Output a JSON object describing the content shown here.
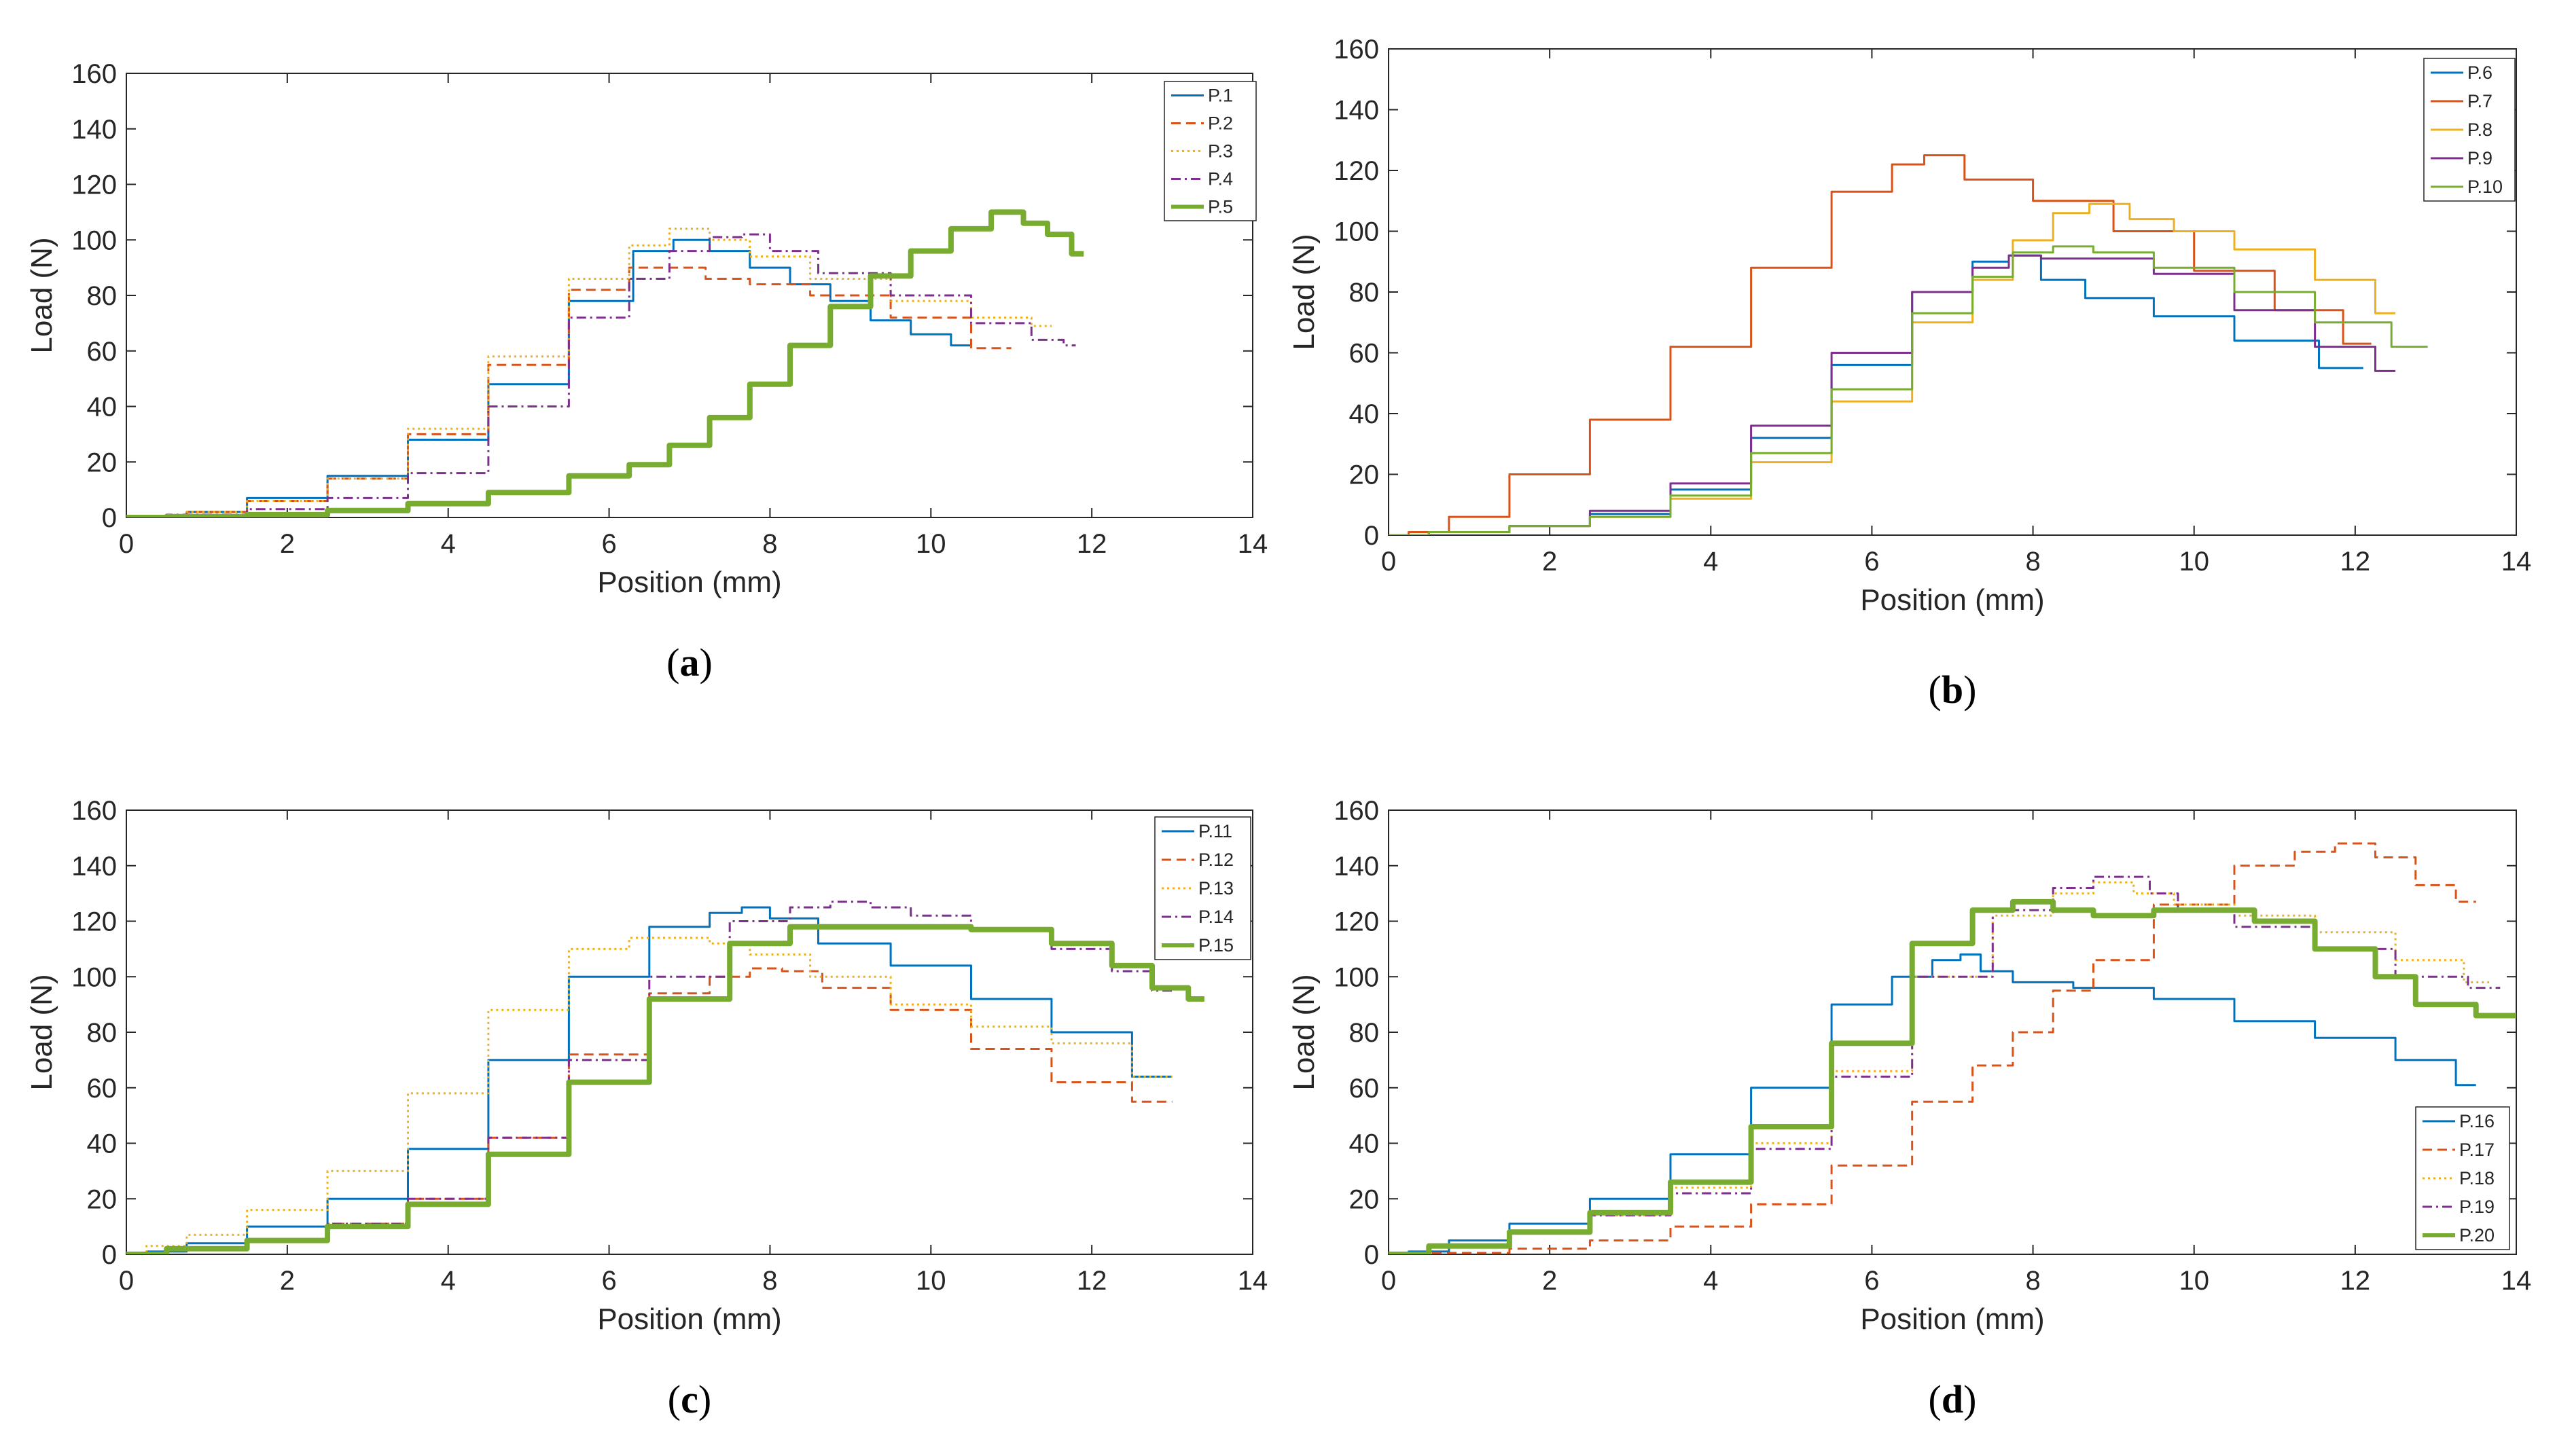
{
  "colors": {
    "blue": "#0072BD",
    "orange": "#D95319",
    "yellow": "#EDB120",
    "purple": "#7E2F8E",
    "green": "#77AC30"
  },
  "chart_data": [
    {
      "type": "line",
      "caption_letter": "a",
      "xlabel": "Position (mm)",
      "ylabel": "Load (N)",
      "xlim": [
        0,
        14
      ],
      "ylim": [
        0,
        160
      ],
      "xticks": [
        0,
        2,
        4,
        6,
        8,
        10,
        12,
        14
      ],
      "yticks": [
        0,
        20,
        40,
        60,
        80,
        100,
        120,
        140,
        160
      ],
      "legend_position": "top-right",
      "series": [
        {
          "name": "P.1",
          "style": "solid",
          "width": 3,
          "color": "#0072BD",
          "x": [
            0,
            0.5,
            1,
            2,
            3,
            4,
            5,
            6,
            6.6,
            7.0,
            7.5,
            8,
            8.5,
            9,
            9.5,
            10,
            10.5
          ],
          "y": [
            0,
            0.5,
            2,
            7,
            15,
            28,
            48,
            78,
            96,
            100,
            96,
            90,
            84,
            78,
            71,
            66,
            62
          ]
        },
        {
          "name": "P.2",
          "style": "dashed",
          "width": 3,
          "color": "#D95319",
          "x": [
            0,
            0.5,
            1,
            2,
            3,
            4,
            5,
            6,
            6.5,
            6.9,
            7.5,
            8,
            9,
            10,
            11
          ],
          "y": [
            0,
            0.5,
            2,
            6,
            14,
            30,
            55,
            82,
            90,
            90,
            86,
            84,
            80,
            72,
            61
          ]
        },
        {
          "name": "P.3",
          "style": "dotted",
          "width": 3,
          "color": "#EDB120",
          "x": [
            0,
            0.5,
            1,
            2,
            3,
            4,
            5,
            6,
            6.5,
            7.0,
            7.5,
            8,
            9,
            10,
            11,
            11.5
          ],
          "y": [
            0,
            0.5,
            2,
            6,
            14,
            32,
            58,
            86,
            98,
            104,
            100,
            94,
            86,
            78,
            72,
            69
          ]
        },
        {
          "name": "P.4",
          "style": "dashdot",
          "width": 3,
          "color": "#7E2F8E",
          "x": [
            0,
            1,
            2,
            3,
            4,
            5,
            6,
            6.5,
            7.0,
            7.5,
            7.8,
            8.2,
            9,
            10,
            11,
            11.5,
            11.8
          ],
          "y": [
            0,
            1,
            3,
            7,
            16,
            40,
            72,
            86,
            96,
            101,
            102,
            96,
            88,
            80,
            70,
            64,
            62
          ]
        },
        {
          "name": "P.5",
          "style": "solid",
          "width": 8,
          "color": "#77AC30",
          "x": [
            0,
            1,
            2,
            3,
            4,
            5,
            6,
            6.5,
            7,
            7.5,
            8,
            8.5,
            9,
            9.5,
            10,
            10.5,
            11,
            11.3,
            11.6,
            11.9
          ],
          "y": [
            0,
            0.3,
            1,
            2.5,
            5,
            9,
            15,
            19,
            26,
            36,
            48,
            62,
            76,
            87,
            96,
            104,
            110,
            106,
            102,
            95
          ]
        }
      ]
    },
    {
      "type": "line",
      "caption_letter": "b",
      "xlabel": "Position (mm)",
      "ylabel": "Load (N)",
      "xlim": [
        0,
        14
      ],
      "ylim": [
        0,
        160
      ],
      "xticks": [
        0,
        2,
        4,
        6,
        8,
        10,
        12,
        14
      ],
      "yticks": [
        0,
        20,
        40,
        60,
        80,
        100,
        120,
        140,
        160
      ],
      "legend_position": "top-right",
      "series": [
        {
          "name": "P.6",
          "style": "solid",
          "width": 3,
          "color": "#0072BD",
          "x": [
            0,
            1,
            2,
            3,
            4,
            5,
            6,
            7,
            7.5,
            7.9,
            8.3,
            9,
            10,
            11,
            12.1
          ],
          "y": [
            0,
            1,
            3,
            7,
            15,
            32,
            56,
            80,
            90,
            92,
            84,
            78,
            72,
            64,
            55
          ]
        },
        {
          "name": "P.7",
          "style": "solid",
          "width": 3,
          "color": "#D95319",
          "x": [
            0,
            0.5,
            1,
            2,
            3,
            4,
            5,
            6,
            6.5,
            6.8,
            7.5,
            8.5,
            9.5,
            10.5,
            11.5,
            12.2
          ],
          "y": [
            0,
            1,
            6,
            20,
            38,
            62,
            88,
            113,
            122,
            125,
            117,
            110,
            100,
            87,
            74,
            63
          ]
        },
        {
          "name": "P.8",
          "style": "solid",
          "width": 3,
          "color": "#EDB120",
          "x": [
            0,
            1,
            2,
            3,
            4,
            5,
            6,
            7,
            7.5,
            8,
            8.5,
            8.9,
            9.5,
            10,
            11,
            12,
            12.5
          ],
          "y": [
            0,
            1,
            3,
            6,
            12,
            24,
            44,
            70,
            84,
            97,
            106,
            109,
            104,
            100,
            94,
            84,
            73
          ]
        },
        {
          "name": "P.9",
          "style": "solid",
          "width": 3,
          "color": "#7E2F8E",
          "x": [
            0,
            1,
            2,
            3,
            4,
            5,
            6,
            7,
            7.5,
            7.9,
            8.3,
            9,
            10,
            11,
            12,
            12.5
          ],
          "y": [
            0,
            1,
            3,
            8,
            17,
            36,
            60,
            80,
            88,
            92,
            91,
            91,
            86,
            74,
            62,
            54
          ]
        },
        {
          "name": "P.10",
          "style": "solid",
          "width": 3,
          "color": "#77AC30",
          "x": [
            0,
            1,
            2,
            3,
            4,
            5,
            6,
            7,
            7.5,
            8,
            8.5,
            9,
            10,
            11,
            12,
            12.9
          ],
          "y": [
            0,
            1,
            3,
            6,
            13,
            27,
            48,
            73,
            85,
            93,
            95,
            93,
            88,
            80,
            70,
            62
          ]
        }
      ]
    },
    {
      "type": "line",
      "caption_letter": "c",
      "xlabel": "Position (mm)",
      "ylabel": "Load (N)",
      "xlim": [
        0,
        14
      ],
      "ylim": [
        0,
        160
      ],
      "xticks": [
        0,
        2,
        4,
        6,
        8,
        10,
        12,
        14
      ],
      "yticks": [
        0,
        20,
        40,
        60,
        80,
        100,
        120,
        140,
        160
      ],
      "legend_position": "top-right",
      "series": [
        {
          "name": "P.11",
          "style": "solid",
          "width": 3,
          "color": "#0072BD",
          "x": [
            0,
            0.5,
            1,
            2,
            3,
            4,
            5,
            6,
            7,
            7.5,
            7.8,
            8.2,
            9,
            10,
            11,
            12,
            13
          ],
          "y": [
            0,
            1,
            4,
            10,
            20,
            38,
            70,
            100,
            118,
            123,
            125,
            121,
            112,
            104,
            92,
            80,
            64
          ]
        },
        {
          "name": "P.12",
          "style": "dashed",
          "width": 3,
          "color": "#D95319",
          "x": [
            0,
            1,
            2,
            3,
            4,
            5,
            6,
            7,
            7.5,
            8,
            8.3,
            9,
            10,
            11,
            12,
            13
          ],
          "y": [
            0,
            2,
            5,
            11,
            20,
            42,
            72,
            94,
            100,
            103,
            102,
            96,
            88,
            74,
            62,
            55
          ]
        },
        {
          "name": "P.13",
          "style": "dotted",
          "width": 3,
          "color": "#EDB120",
          "x": [
            0,
            0.5,
            1,
            2,
            3,
            4,
            5,
            6,
            6.5,
            7,
            7.5,
            8,
            9,
            10,
            11,
            12,
            13
          ],
          "y": [
            0,
            3,
            7,
            16,
            30,
            58,
            88,
            110,
            114,
            114,
            112,
            108,
            100,
            90,
            82,
            76,
            64
          ]
        },
        {
          "name": "P.14",
          "style": "dashdot",
          "width": 3,
          "color": "#7E2F8E",
          "x": [
            0,
            1,
            2,
            3,
            4,
            5,
            6,
            7,
            8,
            8.5,
            9,
            9.5,
            10,
            11,
            12,
            12.5,
            13
          ],
          "y": [
            0,
            2,
            5,
            11,
            20,
            42,
            70,
            100,
            120,
            125,
            127,
            125,
            122,
            117,
            110,
            102,
            95
          ]
        },
        {
          "name": "P.15",
          "style": "solid",
          "width": 8,
          "color": "#77AC30",
          "x": [
            0,
            1,
            2,
            3,
            4,
            5,
            6,
            7,
            8,
            8.5,
            9,
            10,
            11,
            12,
            12.5,
            13,
            13.4
          ],
          "y": [
            0,
            2,
            5,
            10,
            18,
            36,
            62,
            92,
            112,
            118,
            118,
            118,
            117,
            112,
            104,
            96,
            92
          ]
        }
      ]
    },
    {
      "type": "line",
      "caption_letter": "d",
      "xlabel": "Position (mm)",
      "ylabel": "Load (N)",
      "xlim": [
        0,
        14
      ],
      "ylim": [
        0,
        160
      ],
      "xticks": [
        0,
        2,
        4,
        6,
        8,
        10,
        12,
        14
      ],
      "yticks": [
        0,
        20,
        40,
        60,
        80,
        100,
        120,
        140,
        160
      ],
      "legend_position": "bottom-right",
      "series": [
        {
          "name": "P.16",
          "style": "solid",
          "width": 3,
          "color": "#0072BD",
          "x": [
            0,
            0.5,
            1,
            2,
            3,
            4,
            5,
            6,
            6.5,
            7,
            7.2,
            7.5,
            8,
            9,
            10,
            11,
            12,
            13,
            13.5
          ],
          "y": [
            0,
            1,
            5,
            11,
            20,
            36,
            60,
            90,
            100,
            106,
            108,
            102,
            98,
            96,
            92,
            84,
            78,
            70,
            61
          ]
        },
        {
          "name": "P.17",
          "style": "dashed",
          "width": 3,
          "color": "#D95319",
          "x": [
            0,
            1,
            2,
            3,
            4,
            5,
            6,
            7,
            7.5,
            8,
            8.5,
            9,
            10,
            11,
            11.5,
            12,
            12.5,
            13,
            13.5
          ],
          "y": [
            0,
            0.5,
            2,
            5,
            10,
            18,
            32,
            55,
            68,
            80,
            95,
            106,
            126,
            140,
            145,
            148,
            143,
            133,
            127
          ]
        },
        {
          "name": "P.18",
          "style": "dotted",
          "width": 3,
          "color": "#EDB120",
          "x": [
            0,
            1,
            2,
            3,
            4,
            5,
            6,
            7,
            8,
            8.5,
            9,
            9.5,
            10,
            11,
            12,
            13,
            13.7
          ],
          "y": [
            0,
            3,
            8,
            14,
            24,
            40,
            66,
            100,
            122,
            130,
            134,
            130,
            126,
            122,
            116,
            106,
            98
          ]
        },
        {
          "name": "P.19",
          "style": "dashdot",
          "width": 3,
          "color": "#7E2F8E",
          "x": [
            0,
            1,
            2,
            3,
            4,
            5,
            6,
            7,
            8,
            8.5,
            9,
            9.3,
            9.6,
            10,
            11,
            12,
            13,
            13.8
          ],
          "y": [
            0,
            3,
            8,
            14,
            22,
            38,
            64,
            100,
            124,
            132,
            136,
            136,
            130,
            124,
            118,
            110,
            100,
            96
          ]
        },
        {
          "name": "P.20",
          "style": "solid",
          "width": 8,
          "color": "#77AC30",
          "x": [
            0,
            1,
            2,
            3,
            4,
            5,
            6,
            7,
            7.5,
            8,
            8.5,
            9,
            10,
            10.5,
            11,
            12,
            12.5,
            13,
            14
          ],
          "y": [
            0,
            3,
            8,
            15,
            26,
            46,
            76,
            112,
            124,
            127,
            124,
            122,
            124,
            124,
            120,
            110,
            100,
            90,
            86
          ]
        }
      ]
    }
  ]
}
